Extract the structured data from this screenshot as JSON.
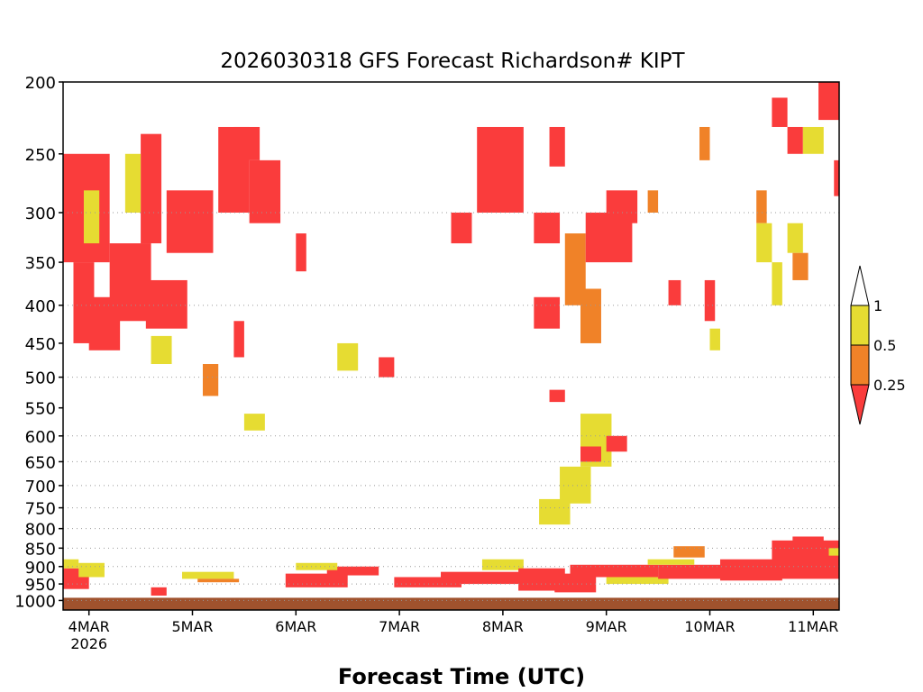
{
  "chart_data": {
    "type": "heatmap",
    "title": "2026030318 GFS Forecast Richardson# KIPT",
    "xlabel": "Forecast Time (UTC)",
    "ylabel": "",
    "x_ticks": [
      "4MAR",
      "5MAR",
      "6MAR",
      "7MAR",
      "8MAR",
      "9MAR",
      "10MAR",
      "11MAR"
    ],
    "x_tick_sub": "2026",
    "x_range_days": [
      3.75,
      11.25
    ],
    "y_scale": "log-pressure (hPa, inverted)",
    "y_ticks": [
      200,
      250,
      300,
      350,
      400,
      450,
      500,
      550,
      600,
      650,
      700,
      750,
      800,
      850,
      900,
      950,
      1000
    ],
    "y_gridlines": [
      300,
      400,
      500,
      600,
      650,
      700,
      750,
      800,
      850,
      900,
      950,
      1000
    ],
    "ylim": [
      1030,
      200
    ],
    "legend": {
      "placement": "right",
      "bins": [
        {
          "range": "> 1",
          "color": "#ffffff"
        },
        {
          "range": "0.5 - 1",
          "color": "#e6dc32"
        },
        {
          "range": "0.25 - 0.5",
          "color": "#f08228"
        },
        {
          "range": "< 0.25",
          "color": "#fa3c3c"
        }
      ],
      "labels": [
        "1",
        "0.5",
        "0.25"
      ]
    },
    "ground_color": "#a0522d",
    "cells": [
      {
        "t0": 3.75,
        "t1": 4.0,
        "p0": 905,
        "p1": 965,
        "bin": 0
      },
      {
        "t0": 3.75,
        "t1": 3.9,
        "p0": 880,
        "p1": 905,
        "bin": 1
      },
      {
        "t0": 3.9,
        "t1": 4.15,
        "p0": 890,
        "p1": 930,
        "bin": 1
      },
      {
        "t0": 4.6,
        "t1": 4.75,
        "p0": 960,
        "p1": 985,
        "bin": 0
      },
      {
        "t0": 4.9,
        "t1": 5.4,
        "p0": 915,
        "p1": 935,
        "bin": 1
      },
      {
        "t0": 5.05,
        "t1": 5.45,
        "p0": 935,
        "p1": 945,
        "bin": 2
      },
      {
        "t0": 5.9,
        "t1": 6.5,
        "p0": 920,
        "p1": 960,
        "bin": 0
      },
      {
        "t0": 6.3,
        "t1": 6.8,
        "p0": 900,
        "p1": 925,
        "bin": 0
      },
      {
        "t0": 6.0,
        "t1": 6.4,
        "p0": 890,
        "p1": 910,
        "bin": 1
      },
      {
        "t0": 6.95,
        "t1": 7.6,
        "p0": 930,
        "p1": 960,
        "bin": 0
      },
      {
        "t0": 7.4,
        "t1": 8.3,
        "p0": 915,
        "p1": 950,
        "bin": 0
      },
      {
        "t0": 7.8,
        "t1": 8.2,
        "p0": 880,
        "p1": 910,
        "bin": 1
      },
      {
        "t0": 8.15,
        "t1": 8.6,
        "p0": 905,
        "p1": 970,
        "bin": 0
      },
      {
        "t0": 8.5,
        "t1": 8.9,
        "p0": 920,
        "p1": 975,
        "bin": 0
      },
      {
        "t0": 8.65,
        "t1": 9.5,
        "p0": 895,
        "p1": 930,
        "bin": 0
      },
      {
        "t0": 9.0,
        "t1": 9.6,
        "p0": 930,
        "p1": 950,
        "bin": 1
      },
      {
        "t0": 9.5,
        "t1": 10.2,
        "p0": 895,
        "p1": 935,
        "bin": 0
      },
      {
        "t0": 9.4,
        "t1": 9.85,
        "p0": 880,
        "p1": 895,
        "bin": 1
      },
      {
        "t0": 9.65,
        "t1": 9.95,
        "p0": 845,
        "p1": 875,
        "bin": 2
      },
      {
        "t0": 10.1,
        "t1": 10.7,
        "p0": 880,
        "p1": 940,
        "bin": 0
      },
      {
        "t0": 10.6,
        "t1": 11.25,
        "p0": 830,
        "p1": 935,
        "bin": 0
      },
      {
        "t0": 10.8,
        "t1": 11.1,
        "p0": 820,
        "p1": 850,
        "bin": 0
      },
      {
        "t0": 11.15,
        "t1": 11.25,
        "p0": 850,
        "p1": 870,
        "bin": 1
      },
      {
        "t0": 3.75,
        "t1": 4.2,
        "p0": 250,
        "p1": 350,
        "bin": 0
      },
      {
        "t0": 3.85,
        "t1": 4.05,
        "p0": 350,
        "p1": 450,
        "bin": 0
      },
      {
        "t0": 4.0,
        "t1": 4.3,
        "p0": 390,
        "p1": 460,
        "bin": 0
      },
      {
        "t0": 4.2,
        "t1": 4.6,
        "p0": 330,
        "p1": 420,
        "bin": 0
      },
      {
        "t0": 4.55,
        "t1": 4.95,
        "p0": 370,
        "p1": 430,
        "bin": 0
      },
      {
        "t0": 4.5,
        "t1": 4.7,
        "p0": 235,
        "p1": 330,
        "bin": 0
      },
      {
        "t0": 4.75,
        "t1": 5.2,
        "p0": 280,
        "p1": 340,
        "bin": 0
      },
      {
        "t0": 5.25,
        "t1": 5.55,
        "p0": 230,
        "p1": 300,
        "bin": 0
      },
      {
        "t0": 5.4,
        "t1": 5.65,
        "p0": 230,
        "p1": 255,
        "bin": 0
      },
      {
        "t0": 5.55,
        "t1": 5.85,
        "p0": 255,
        "p1": 310,
        "bin": 0
      },
      {
        "t0": 4.35,
        "t1": 4.5,
        "p0": 250,
        "p1": 300,
        "bin": 1
      },
      {
        "t0": 3.95,
        "t1": 4.1,
        "p0": 280,
        "p1": 330,
        "bin": 1
      },
      {
        "t0": 4.6,
        "t1": 4.8,
        "p0": 440,
        "p1": 480,
        "bin": 1
      },
      {
        "t0": 5.1,
        "t1": 5.25,
        "p0": 480,
        "p1": 530,
        "bin": 2
      },
      {
        "t0": 5.5,
        "t1": 5.7,
        "p0": 560,
        "p1": 590,
        "bin": 1
      },
      {
        "t0": 5.4,
        "t1": 5.5,
        "p0": 420,
        "p1": 470,
        "bin": 0
      },
      {
        "t0": 6.0,
        "t1": 6.1,
        "p0": 320,
        "p1": 360,
        "bin": 0
      },
      {
        "t0": 6.4,
        "t1": 6.6,
        "p0": 450,
        "p1": 490,
        "bin": 1
      },
      {
        "t0": 6.8,
        "t1": 6.95,
        "p0": 470,
        "p1": 500,
        "bin": 0
      },
      {
        "t0": 7.5,
        "t1": 7.7,
        "p0": 300,
        "p1": 330,
        "bin": 0
      },
      {
        "t0": 7.75,
        "t1": 8.2,
        "p0": 230,
        "p1": 300,
        "bin": 0
      },
      {
        "t0": 8.3,
        "t1": 8.55,
        "p0": 300,
        "p1": 330,
        "bin": 0
      },
      {
        "t0": 8.45,
        "t1": 8.6,
        "p0": 230,
        "p1": 260,
        "bin": 0
      },
      {
        "t0": 8.3,
        "t1": 8.55,
        "p0": 390,
        "p1": 430,
        "bin": 0
      },
      {
        "t0": 8.45,
        "t1": 8.6,
        "p0": 520,
        "p1": 540,
        "bin": 0
      },
      {
        "t0": 8.6,
        "t1": 8.8,
        "p0": 320,
        "p1": 400,
        "bin": 2
      },
      {
        "t0": 8.8,
        "t1": 9.25,
        "p0": 300,
        "p1": 350,
        "bin": 0
      },
      {
        "t0": 9.0,
        "t1": 9.3,
        "p0": 280,
        "p1": 310,
        "bin": 0
      },
      {
        "t0": 8.75,
        "t1": 8.95,
        "p0": 380,
        "p1": 450,
        "bin": 2
      },
      {
        "t0": 8.75,
        "t1": 9.05,
        "p0": 560,
        "p1": 660,
        "bin": 1
      },
      {
        "t0": 8.75,
        "t1": 8.95,
        "p0": 620,
        "p1": 650,
        "bin": 0
      },
      {
        "t0": 9.0,
        "t1": 9.2,
        "p0": 600,
        "p1": 630,
        "bin": 0
      },
      {
        "t0": 8.55,
        "t1": 8.85,
        "p0": 660,
        "p1": 740,
        "bin": 1
      },
      {
        "t0": 8.35,
        "t1": 8.65,
        "p0": 730,
        "p1": 790,
        "bin": 1
      },
      {
        "t0": 9.4,
        "t1": 9.5,
        "p0": 280,
        "p1": 300,
        "bin": 2
      },
      {
        "t0": 9.6,
        "t1": 9.72,
        "p0": 370,
        "p1": 400,
        "bin": 0
      },
      {
        "t0": 9.95,
        "t1": 10.05,
        "p0": 370,
        "p1": 420,
        "bin": 0
      },
      {
        "t0": 9.9,
        "t1": 10.0,
        "p0": 230,
        "p1": 255,
        "bin": 2
      },
      {
        "t0": 10.0,
        "t1": 10.1,
        "p0": 430,
        "p1": 460,
        "bin": 1
      },
      {
        "t0": 10.45,
        "t1": 10.55,
        "p0": 280,
        "p1": 310,
        "bin": 2
      },
      {
        "t0": 10.45,
        "t1": 10.6,
        "p0": 310,
        "p1": 350,
        "bin": 1
      },
      {
        "t0": 10.6,
        "t1": 10.7,
        "p0": 350,
        "p1": 400,
        "bin": 1
      },
      {
        "t0": 10.6,
        "t1": 10.75,
        "p0": 210,
        "p1": 230,
        "bin": 0
      },
      {
        "t0": 10.75,
        "t1": 10.9,
        "p0": 230,
        "p1": 250,
        "bin": 0
      },
      {
        "t0": 10.75,
        "t1": 10.9,
        "p0": 310,
        "p1": 340,
        "bin": 1
      },
      {
        "t0": 10.9,
        "t1": 11.1,
        "p0": 230,
        "p1": 250,
        "bin": 1
      },
      {
        "t0": 11.05,
        "t1": 11.25,
        "p0": 200,
        "p1": 225,
        "bin": 0
      },
      {
        "t0": 11.2,
        "t1": 11.25,
        "p0": 255,
        "p1": 285,
        "bin": 0
      },
      {
        "t0": 10.8,
        "t1": 10.95,
        "p0": 340,
        "p1": 370,
        "bin": 2
      }
    ]
  }
}
